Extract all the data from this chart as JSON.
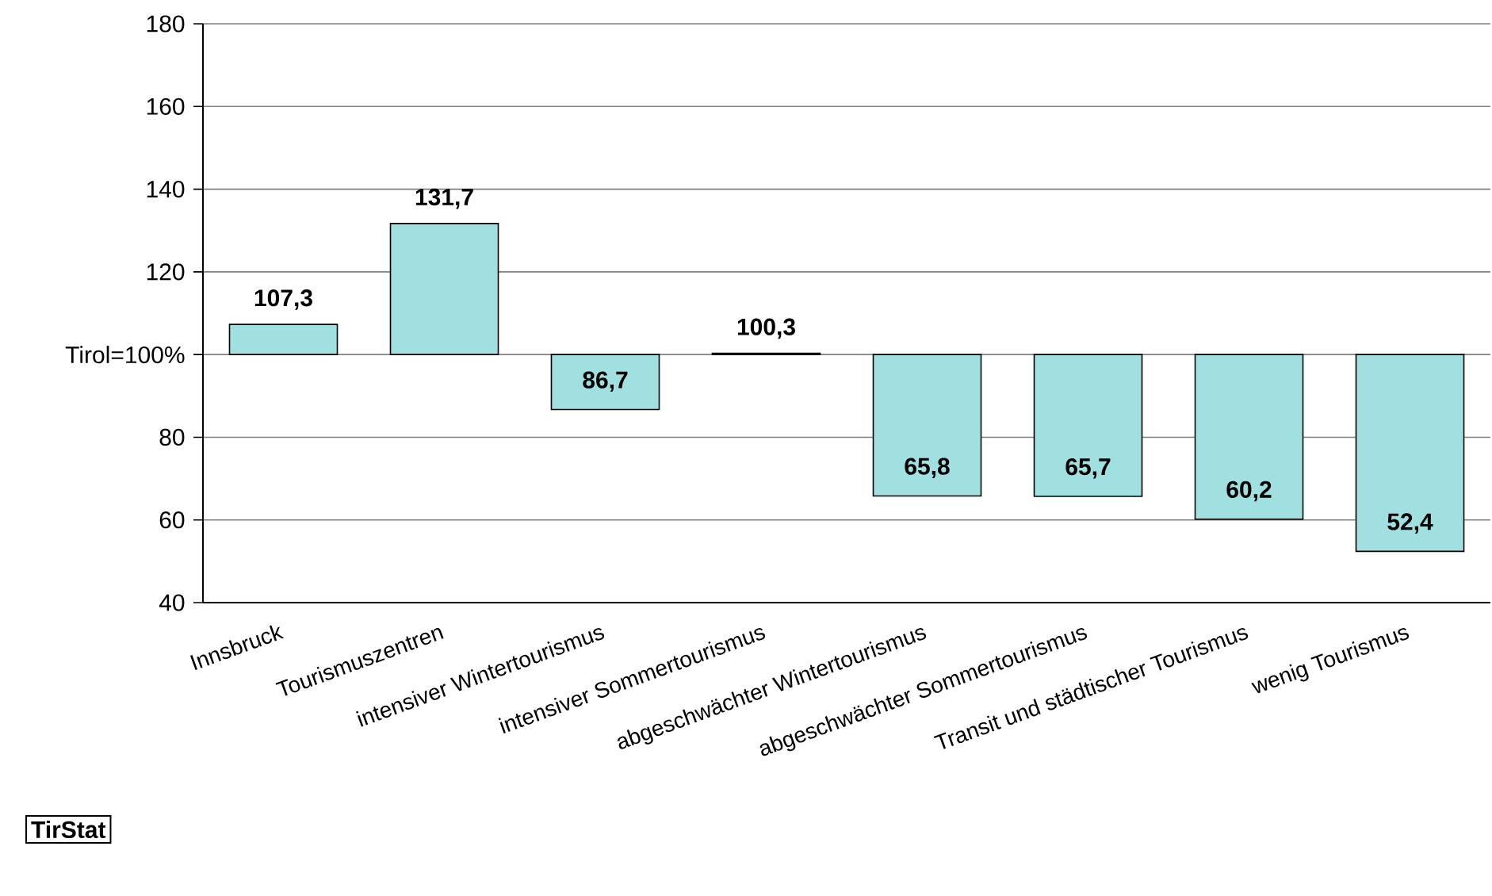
{
  "chart_data": {
    "type": "bar",
    "categories": [
      "Innsbruck",
      "Tourismuszentren",
      "intensiver Wintertourismus",
      "intensiver Sommertourismus",
      "abgeschwächter Wintertourismus",
      "abgeschwächter Sommertourismus",
      "Transit und städtischer Tourismus",
      "wenig Tourismus"
    ],
    "base": [
      100,
      100,
      100,
      100,
      100,
      100,
      100,
      100
    ],
    "values": [
      7.3,
      31.7,
      -13.3,
      0.3,
      -34.2,
      -34.3,
      -39.8,
      -47.6
    ],
    "value_labels": [
      "107,3",
      "131,7",
      "86,7",
      "100,3",
      "65,8",
      "65,7",
      "60,2",
      "52,4"
    ],
    "color": "#a0e0e0",
    "ylim": [
      40,
      180
    ],
    "yticks": [
      40,
      60,
      80,
      {
        "value": 100,
        "label": "Tirol=100%"
      },
      120,
      140,
      160,
      180
    ],
    "grid": "y",
    "annotations": [
      "TirStat"
    ]
  }
}
